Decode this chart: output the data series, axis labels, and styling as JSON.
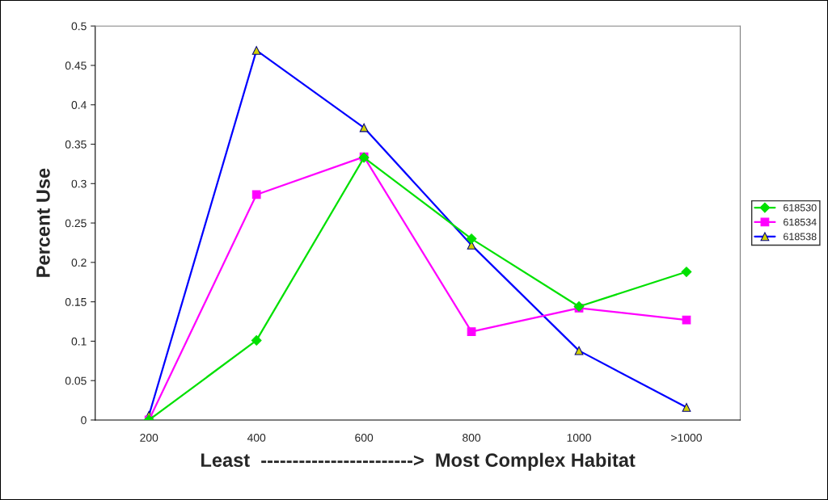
{
  "chart_data": {
    "type": "line",
    "xlabel": "Least  ------------------------>  Most Complex Habitat",
    "ylabel": "Percent Use",
    "categories": [
      "200",
      "400",
      "600",
      "800",
      "1000",
      ">1000"
    ],
    "ylim": [
      0,
      0.5
    ],
    "yticks": [
      0,
      0.05,
      0.1,
      0.15,
      0.2,
      0.25,
      0.3,
      0.35,
      0.4,
      0.45,
      0.5
    ],
    "grid": false,
    "legend": "right",
    "series": [
      {
        "name": "618530",
        "color": "#00e000",
        "marker": "diamond",
        "values": [
          0,
          0.101,
          0.333,
          0.23,
          0.144,
          0.188
        ]
      },
      {
        "name": "618534",
        "color": "#ff00ff",
        "marker": "square",
        "values": [
          0,
          0.286,
          0.334,
          0.112,
          0.142,
          0.127
        ]
      },
      {
        "name": "618538",
        "color": "#0000ff",
        "marker": "triangle",
        "values": [
          0.006,
          0.469,
          0.371,
          0.222,
          0.088,
          0.016
        ]
      }
    ]
  }
}
